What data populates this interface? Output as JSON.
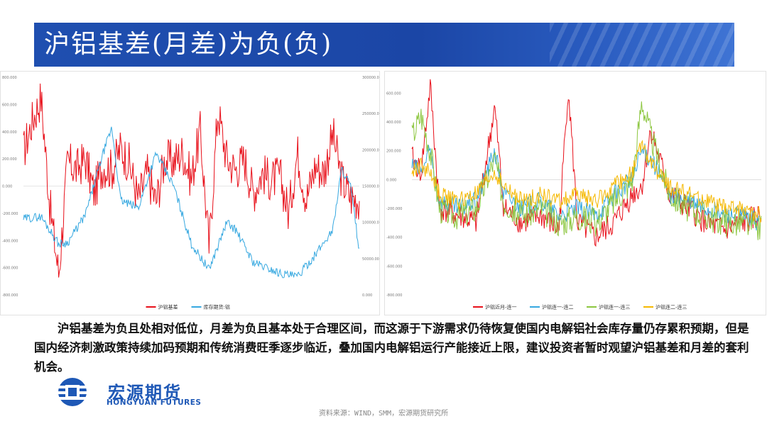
{
  "title": "沪铝基差(月差)为负(负)",
  "description": "沪铝基差为负且处相对低位，月差为负且基本处于合理区间，而这源于下游需求仍待恢复使国内电解铝社会库存量仍存累积预期，但是国内经济刺激政策持续加码预期和传统消费旺季逐步临近，叠加国内电解铝运行产能接近上限，建议投资者暂时观望沪铝基差和月差的套利机会。",
  "logo": {
    "cn": "宏源期货",
    "en": "HONGYUAN FUTURES"
  },
  "source": "资料来源：WIND，SMM，宏源期货研究所",
  "colors": {
    "banner": "#1f4fb0",
    "red": "#e8101a",
    "blue": "#36a8e0",
    "green": "#8cc63f",
    "yellow": "#f5b800"
  },
  "chart_data": [
    {
      "type": "line",
      "title": "",
      "dual_axis": true,
      "left_ticks": [
        "800.000",
        "600.000",
        "400.000",
        "200.000",
        "0.000",
        "-200.000",
        "-400.000",
        "-600.000",
        "-800.000"
      ],
      "right_ticks": [
        "300000.000",
        "250000.000",
        "200000.000",
        "150000.000",
        "100000.000",
        "50000.000",
        "0.000"
      ],
      "ylim_left": [
        -800,
        800
      ],
      "ylim_right": [
        0,
        300000
      ],
      "x_range": [
        "2020-01-02",
        "2023-03-01"
      ],
      "series": [
        {
          "name": "沪铝基差",
          "axis": "left",
          "color": "#e8101a",
          "keypoints": [
            {
              "x": "2020-01",
              "y": 250
            },
            {
              "x": "2020-02",
              "y": 480
            },
            {
              "x": "2020-03",
              "y": 650
            },
            {
              "x": "2020-04",
              "y": -150
            },
            {
              "x": "2020-05",
              "y": -650
            },
            {
              "x": "2020-06",
              "y": 180
            },
            {
              "x": "2020-07",
              "y": 120
            },
            {
              "x": "2020-08",
              "y": 200
            },
            {
              "x": "2020-09",
              "y": -50
            },
            {
              "x": "2020-10",
              "y": 150
            },
            {
              "x": "2020-11",
              "y": 120
            },
            {
              "x": "2020-12",
              "y": 280
            },
            {
              "x": "2021-01",
              "y": 160
            },
            {
              "x": "2021-02",
              "y": -100
            },
            {
              "x": "2021-03",
              "y": 100
            },
            {
              "x": "2021-04",
              "y": -120
            },
            {
              "x": "2021-05",
              "y": 200
            },
            {
              "x": "2021-06",
              "y": 180
            },
            {
              "x": "2021-07",
              "y": 250
            },
            {
              "x": "2021-08",
              "y": 50
            },
            {
              "x": "2021-09",
              "y": 400
            },
            {
              "x": "2021-10",
              "y": -450
            },
            {
              "x": "2021-11",
              "y": 560
            },
            {
              "x": "2021-12",
              "y": 200
            },
            {
              "x": "2022-01",
              "y": 120
            },
            {
              "x": "2022-02",
              "y": 200
            },
            {
              "x": "2022-03",
              "y": -50
            },
            {
              "x": "2022-04",
              "y": 100
            },
            {
              "x": "2022-05",
              "y": 40
            },
            {
              "x": "2022-06",
              "y": 80
            },
            {
              "x": "2022-07",
              "y": -200
            },
            {
              "x": "2022-08",
              "y": 250
            },
            {
              "x": "2022-09",
              "y": -100
            },
            {
              "x": "2022-10",
              "y": 150
            },
            {
              "x": "2022-11",
              "y": 100
            },
            {
              "x": "2022-12",
              "y": 380
            },
            {
              "x": "2023-01",
              "y": 50
            },
            {
              "x": "2023-02",
              "y": -80
            },
            {
              "x": "2023-03",
              "y": -100
            }
          ]
        },
        {
          "name": "库存期货:铝",
          "axis": "right",
          "color": "#36a8e0",
          "keypoints": [
            {
              "x": "2020-01",
              "y": 105000
            },
            {
              "x": "2020-03",
              "y": 108000
            },
            {
              "x": "2020-05",
              "y": 70000
            },
            {
              "x": "2020-06",
              "y": 72000
            },
            {
              "x": "2020-08",
              "y": 110000
            },
            {
              "x": "2020-10",
              "y": 195000
            },
            {
              "x": "2020-11",
              "y": 230000
            },
            {
              "x": "2020-12",
              "y": 130000
            },
            {
              "x": "2021-02",
              "y": 120000
            },
            {
              "x": "2021-04",
              "y": 195000
            },
            {
              "x": "2021-06",
              "y": 150000
            },
            {
              "x": "2021-08",
              "y": 70000
            },
            {
              "x": "2021-10",
              "y": 35000
            },
            {
              "x": "2021-12",
              "y": 100000
            },
            {
              "x": "2022-01",
              "y": 90000
            },
            {
              "x": "2022-03",
              "y": 45000
            },
            {
              "x": "2022-06",
              "y": 30000
            },
            {
              "x": "2022-08",
              "y": 25000
            },
            {
              "x": "2022-10",
              "y": 55000
            },
            {
              "x": "2022-12",
              "y": 90000
            },
            {
              "x": "2023-01",
              "y": 175000
            },
            {
              "x": "2023-02",
              "y": 150000
            },
            {
              "x": "2023-03",
              "y": 60000
            }
          ]
        }
      ]
    },
    {
      "type": "line",
      "title": "",
      "y_ticks": [
        "600.000",
        "400.000",
        "200.000",
        "0.000",
        "-200.000",
        "-400.000",
        "-600.000",
        "-800.000"
      ],
      "ylim": [
        -800,
        700
      ],
      "x_range": [
        "2020-01-02",
        "2023-03-01"
      ],
      "series": [
        {
          "name": "沪铝近月-连一",
          "color": "#e8101a",
          "keypoints": [
            {
              "x": "2020-01",
              "y": 150
            },
            {
              "x": "2020-02",
              "y": 50
            },
            {
              "x": "2020-03",
              "y": 650
            },
            {
              "x": "2020-04",
              "y": -200
            },
            {
              "x": "2020-06",
              "y": -250
            },
            {
              "x": "2020-08",
              "y": -300
            },
            {
              "x": "2020-10",
              "y": 500
            },
            {
              "x": "2020-11",
              "y": -200
            },
            {
              "x": "2021-01",
              "y": -300
            },
            {
              "x": "2021-03",
              "y": -250
            },
            {
              "x": "2021-05",
              "y": -350
            },
            {
              "x": "2021-06",
              "y": 650
            },
            {
              "x": "2021-07",
              "y": -300
            },
            {
              "x": "2021-09",
              "y": -400
            },
            {
              "x": "2021-11",
              "y": -300
            },
            {
              "x": "2022-01",
              "y": -100
            },
            {
              "x": "2022-02",
              "y": -50
            },
            {
              "x": "2022-03",
              "y": 350
            },
            {
              "x": "2022-05",
              "y": -100
            },
            {
              "x": "2022-07",
              "y": -200
            },
            {
              "x": "2022-09",
              "y": -300
            },
            {
              "x": "2022-11",
              "y": -350
            },
            {
              "x": "2023-01",
              "y": -300
            },
            {
              "x": "2023-03",
              "y": -250
            }
          ]
        },
        {
          "name": "沪铝连一-连二",
          "color": "#36a8e0",
          "keypoints": [
            {
              "x": "2020-01",
              "y": 100
            },
            {
              "x": "2020-02",
              "y": 50
            },
            {
              "x": "2020-03",
              "y": 200
            },
            {
              "x": "2020-04",
              "y": -150
            },
            {
              "x": "2020-06",
              "y": -200
            },
            {
              "x": "2020-08",
              "y": -150
            },
            {
              "x": "2020-10",
              "y": 200
            },
            {
              "x": "2020-11",
              "y": -100
            },
            {
              "x": "2021-01",
              "y": -200
            },
            {
              "x": "2021-03",
              "y": -150
            },
            {
              "x": "2021-05",
              "y": -250
            },
            {
              "x": "2021-07",
              "y": -200
            },
            {
              "x": "2021-09",
              "y": -250
            },
            {
              "x": "2021-11",
              "y": -100
            },
            {
              "x": "2022-01",
              "y": 0
            },
            {
              "x": "2022-02",
              "y": 200
            },
            {
              "x": "2022-03",
              "y": 150
            },
            {
              "x": "2022-05",
              "y": -100
            },
            {
              "x": "2022-07",
              "y": -150
            },
            {
              "x": "2022-09",
              "y": -200
            },
            {
              "x": "2022-11",
              "y": -250
            },
            {
              "x": "2023-01",
              "y": -250
            },
            {
              "x": "2023-03",
              "y": -300
            }
          ]
        },
        {
          "name": "沪铝连一-连三",
          "color": "#8cc63f",
          "keypoints": [
            {
              "x": "2020-01",
              "y": 300
            },
            {
              "x": "2020-02",
              "y": 450
            },
            {
              "x": "2020-03",
              "y": 200
            },
            {
              "x": "2020-04",
              "y": -200
            },
            {
              "x": "2020-06",
              "y": -250
            },
            {
              "x": "2020-08",
              "y": -200
            },
            {
              "x": "2020-10",
              "y": 150
            },
            {
              "x": "2020-11",
              "y": -150
            },
            {
              "x": "2021-01",
              "y": -250
            },
            {
              "x": "2021-03",
              "y": -200
            },
            {
              "x": "2021-05",
              "y": -300
            },
            {
              "x": "2021-07",
              "y": -250
            },
            {
              "x": "2021-09",
              "y": -300
            },
            {
              "x": "2021-11",
              "y": -150
            },
            {
              "x": "2022-01",
              "y": 0
            },
            {
              "x": "2022-02",
              "y": 550
            },
            {
              "x": "2022-03",
              "y": 300
            },
            {
              "x": "2022-05",
              "y": -100
            },
            {
              "x": "2022-07",
              "y": -200
            },
            {
              "x": "2022-09",
              "y": -250
            },
            {
              "x": "2022-11",
              "y": -300
            },
            {
              "x": "2023-01",
              "y": -300
            },
            {
              "x": "2023-03",
              "y": -350
            }
          ]
        },
        {
          "name": "沪铝连二-连三",
          "color": "#f5b800",
          "keypoints": [
            {
              "x": "2020-01",
              "y": 50
            },
            {
              "x": "2020-02",
              "y": 100
            },
            {
              "x": "2020-03",
              "y": 50
            },
            {
              "x": "2020-04",
              "y": -100
            },
            {
              "x": "2020-06",
              "y": -150
            },
            {
              "x": "2020-08",
              "y": -100
            },
            {
              "x": "2020-10",
              "y": 50
            },
            {
              "x": "2020-11",
              "y": -50
            },
            {
              "x": "2021-01",
              "y": -150
            },
            {
              "x": "2021-03",
              "y": -100
            },
            {
              "x": "2021-05",
              "y": -150
            },
            {
              "x": "2021-07",
              "y": -100
            },
            {
              "x": "2021-09",
              "y": -150
            },
            {
              "x": "2021-11",
              "y": -50
            },
            {
              "x": "2022-01",
              "y": 50
            },
            {
              "x": "2022-02",
              "y": 250
            },
            {
              "x": "2022-03",
              "y": 100
            },
            {
              "x": "2022-05",
              "y": -50
            },
            {
              "x": "2022-07",
              "y": -100
            },
            {
              "x": "2022-09",
              "y": -150
            },
            {
              "x": "2022-11",
              "y": -200
            },
            {
              "x": "2023-01",
              "y": -200
            },
            {
              "x": "2023-03",
              "y": -250
            }
          ]
        }
      ]
    }
  ]
}
